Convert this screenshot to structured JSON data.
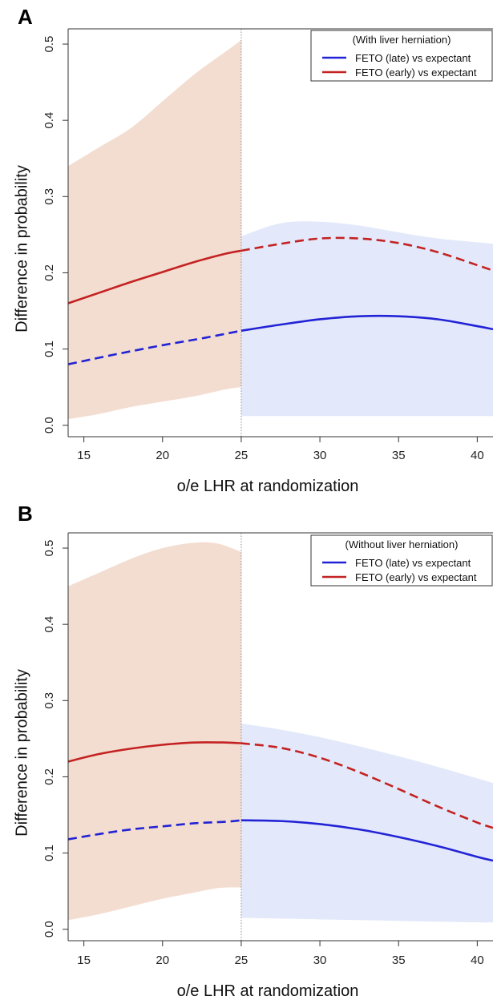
{
  "chart_data": [
    {
      "type": "line",
      "panel_label": "A",
      "legend_title": "(With liver herniation)",
      "xlabel": "o/e LHR at randomization",
      "ylabel": "Difference in probability",
      "xlim": [
        14,
        41
      ],
      "ylim": [
        -0.015,
        0.52
      ],
      "xticks": [
        15,
        20,
        25,
        30,
        35,
        40
      ],
      "yticks": [
        0.0,
        0.1,
        0.2,
        0.3,
        0.4,
        0.5
      ],
      "ytick_labels": [
        "0.0",
        "0.1",
        "0.2",
        "0.3",
        "0.4",
        "0.5"
      ],
      "cutoff_x": 25,
      "legend_position": "top-right",
      "series": [
        {
          "name": "FETO (late) vs expectant",
          "color": "#2323d6",
          "x": [
            14,
            17,
            20,
            22.5,
            25,
            27.5,
            30,
            32.5,
            35,
            37.5,
            40,
            41
          ],
          "y": [
            0.08,
            0.093,
            0.105,
            0.114,
            0.124,
            0.132,
            0.139,
            0.143,
            0.143,
            0.139,
            0.13,
            0.126
          ],
          "dashed_range": [
            14,
            25
          ],
          "solid_range": [
            25,
            41
          ]
        },
        {
          "name": "FETO (early) vs expectant",
          "color": "#c42222",
          "x": [
            14,
            16,
            18,
            20,
            22,
            24,
            25,
            27.5,
            30,
            32.5,
            35,
            37.5,
            40,
            41
          ],
          "y": [
            0.16,
            0.174,
            0.188,
            0.201,
            0.214,
            0.225,
            0.229,
            0.238,
            0.245,
            0.245,
            0.239,
            0.227,
            0.21,
            0.203
          ],
          "solid_range": [
            14,
            25
          ],
          "dashed_range": [
            25,
            41
          ]
        }
      ],
      "bands": [
        {
          "color": "#f3ddd0",
          "x": [
            14,
            16,
            18,
            20,
            22,
            24,
            25
          ],
          "upper": [
            0.34,
            0.365,
            0.39,
            0.425,
            0.46,
            0.49,
            0.505
          ],
          "lower": [
            0.008,
            0.015,
            0.024,
            0.031,
            0.038,
            0.047,
            0.05
          ]
        },
        {
          "color": "#e3e9fa",
          "x": [
            25,
            27.5,
            30,
            32.5,
            35,
            37.5,
            40,
            41
          ],
          "upper": [
            0.248,
            0.265,
            0.267,
            0.262,
            0.253,
            0.245,
            0.24,
            0.238
          ],
          "lower": [
            0.012,
            0.012,
            0.012,
            0.012,
            0.012,
            0.012,
            0.012,
            0.012
          ]
        }
      ]
    },
    {
      "type": "line",
      "panel_label": "B",
      "legend_title": "(Without liver herniation)",
      "xlabel": "o/e LHR at randomization",
      "ylabel": "Difference in probability",
      "xlim": [
        14,
        41
      ],
      "ylim": [
        -0.015,
        0.52
      ],
      "xticks": [
        15,
        20,
        25,
        30,
        35,
        40
      ],
      "yticks": [
        0.0,
        0.1,
        0.2,
        0.3,
        0.4,
        0.5
      ],
      "ytick_labels": [
        "0.0",
        "0.1",
        "0.2",
        "0.3",
        "0.4",
        "0.5"
      ],
      "cutoff_x": 25,
      "legend_position": "top-right",
      "series": [
        {
          "name": "FETO (late) vs expectant",
          "color": "#2323d6",
          "x": [
            14,
            16,
            18,
            20,
            22,
            24,
            25,
            27.5,
            30,
            32.5,
            35,
            37.5,
            40,
            41
          ],
          "y": [
            0.118,
            0.125,
            0.131,
            0.135,
            0.139,
            0.141,
            0.143,
            0.142,
            0.138,
            0.131,
            0.121,
            0.109,
            0.095,
            0.09
          ],
          "dashed_range": [
            14,
            25
          ],
          "solid_range": [
            25,
            41
          ]
        },
        {
          "name": "FETO (early) vs expectant",
          "color": "#c42222",
          "x": [
            14,
            16,
            18,
            20,
            22,
            24,
            25,
            27.5,
            30,
            32.5,
            35,
            37.5,
            40,
            41
          ],
          "y": [
            0.22,
            0.23,
            0.237,
            0.242,
            0.245,
            0.245,
            0.244,
            0.238,
            0.225,
            0.206,
            0.184,
            0.161,
            0.14,
            0.133
          ],
          "solid_range": [
            14,
            25
          ],
          "dashed_range": [
            25,
            41
          ]
        }
      ],
      "bands": [
        {
          "color": "#f3ddd0",
          "x": [
            14,
            16,
            18,
            20,
            22,
            23.5,
            25
          ],
          "upper": [
            0.45,
            0.468,
            0.486,
            0.5,
            0.507,
            0.506,
            0.495
          ],
          "lower": [
            0.012,
            0.02,
            0.03,
            0.04,
            0.048,
            0.054,
            0.055
          ]
        },
        {
          "color": "#e3e9fa",
          "x": [
            25,
            27.5,
            30,
            32.5,
            35,
            37.5,
            40,
            41
          ],
          "upper": [
            0.27,
            0.262,
            0.252,
            0.24,
            0.227,
            0.213,
            0.198,
            0.192
          ],
          "lower": [
            0.015,
            0.014,
            0.013,
            0.012,
            0.011,
            0.01,
            0.009,
            0.009
          ]
        }
      ]
    }
  ]
}
